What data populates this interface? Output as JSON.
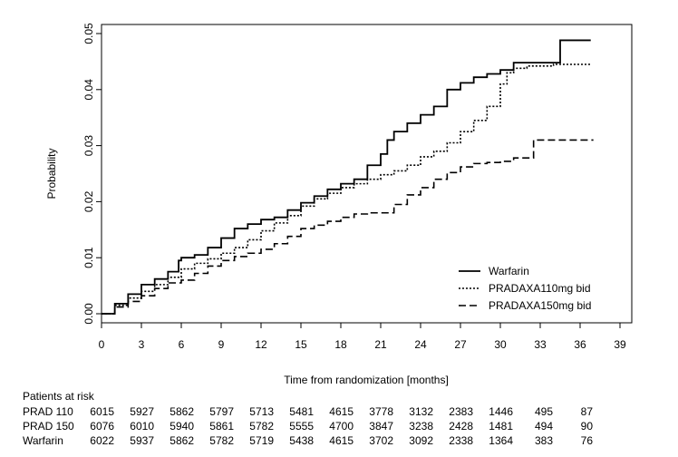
{
  "chart_data": {
    "type": "line",
    "title": "",
    "xlabel": "Time from randomization [months]",
    "ylabel": "Probability",
    "xlim": [
      0,
      39
    ],
    "ylim": [
      0,
      0.05
    ],
    "xticks": [
      0,
      3,
      6,
      9,
      12,
      15,
      18,
      21,
      24,
      27,
      30,
      33,
      36,
      39
    ],
    "yticks": [
      "0.00",
      "0.01",
      "0.02",
      "0.03",
      "0.04",
      "0.05"
    ],
    "grid": false,
    "legend": "bottom-right",
    "series": [
      {
        "name": "Warfarin",
        "style": "solid",
        "color": "#000000",
        "x": [
          0,
          1,
          2,
          3,
          4,
          5,
          5.8,
          6,
          7,
          8,
          9,
          10,
          11,
          12,
          13,
          14,
          15,
          16,
          17,
          18,
          19,
          20,
          21,
          21.5,
          22,
          23,
          24,
          25,
          26,
          27,
          28,
          29,
          30,
          31,
          32,
          33,
          34,
          34.5,
          36.8
        ],
        "y": [
          0,
          0.0018,
          0.0035,
          0.0052,
          0.0062,
          0.0075,
          0.0095,
          0.01,
          0.0105,
          0.0118,
          0.0135,
          0.0152,
          0.016,
          0.0168,
          0.0172,
          0.0185,
          0.0198,
          0.021,
          0.0222,
          0.0232,
          0.024,
          0.0265,
          0.0285,
          0.031,
          0.0325,
          0.034,
          0.0355,
          0.037,
          0.04,
          0.0412,
          0.0422,
          0.0428,
          0.0435,
          0.0448,
          0.0448,
          0.0448,
          0.0448,
          0.0488,
          0.0488
        ]
      },
      {
        "name": "PRADAXA110mg bid",
        "style": "dotted",
        "color": "#000000",
        "x": [
          0,
          1,
          2,
          3,
          4,
          5,
          6,
          7,
          8,
          9,
          10,
          11,
          12,
          13,
          14,
          15,
          16,
          17,
          18,
          19,
          20,
          21,
          22,
          23,
          24,
          25,
          26,
          27,
          28,
          29,
          30,
          30.5,
          31,
          32,
          33,
          34,
          35,
          36,
          36.8
        ],
        "y": [
          0,
          0.0015,
          0.0028,
          0.004,
          0.0052,
          0.0065,
          0.008,
          0.009,
          0.0098,
          0.0108,
          0.0118,
          0.0132,
          0.0148,
          0.0162,
          0.0175,
          0.0192,
          0.0205,
          0.0215,
          0.0225,
          0.0232,
          0.024,
          0.0248,
          0.0255,
          0.0265,
          0.028,
          0.029,
          0.0305,
          0.0325,
          0.0345,
          0.037,
          0.041,
          0.043,
          0.0438,
          0.0442,
          0.0442,
          0.0445,
          0.0445,
          0.0445,
          0.0445
        ]
      },
      {
        "name": "PRADAXA150mg bid",
        "style": "dashed",
        "color": "#000000",
        "x": [
          0,
          1,
          2,
          3,
          4,
          5,
          6,
          7,
          8,
          9,
          10,
          11,
          12,
          13,
          14,
          15,
          16,
          17,
          18,
          19,
          20,
          21,
          22,
          23,
          24,
          25,
          26,
          27,
          28,
          29,
          30,
          31,
          32,
          32.5,
          33,
          34,
          35,
          36,
          37
        ],
        "y": [
          0,
          0.0012,
          0.0022,
          0.0032,
          0.0045,
          0.0055,
          0.006,
          0.0072,
          0.0085,
          0.0095,
          0.0102,
          0.0108,
          0.0115,
          0.0125,
          0.0138,
          0.0152,
          0.0158,
          0.0165,
          0.0172,
          0.0178,
          0.018,
          0.018,
          0.0195,
          0.0212,
          0.0225,
          0.024,
          0.0252,
          0.0262,
          0.0268,
          0.027,
          0.0272,
          0.0278,
          0.0278,
          0.031,
          0.031,
          0.031,
          0.031,
          0.031,
          0.031
        ]
      }
    ]
  },
  "risk_table": {
    "title": "Patients at risk",
    "rows": [
      {
        "label": "PRAD 110",
        "values": [
          "6015",
          "5927",
          "5862",
          "5797",
          "5713",
          "5481",
          "4615",
          "3778",
          "3132",
          "2383",
          "1446",
          "495",
          "87"
        ]
      },
      {
        "label": "PRAD 150",
        "values": [
          "6076",
          "6010",
          "5940",
          "5861",
          "5782",
          "5555",
          "4700",
          "3847",
          "3238",
          "2428",
          "1481",
          "494",
          "90"
        ]
      },
      {
        "label": "Warfarin",
        "values": [
          "6022",
          "5937",
          "5862",
          "5782",
          "5719",
          "5438",
          "4615",
          "3702",
          "3092",
          "2338",
          "1364",
          "383",
          "76"
        ]
      }
    ]
  }
}
